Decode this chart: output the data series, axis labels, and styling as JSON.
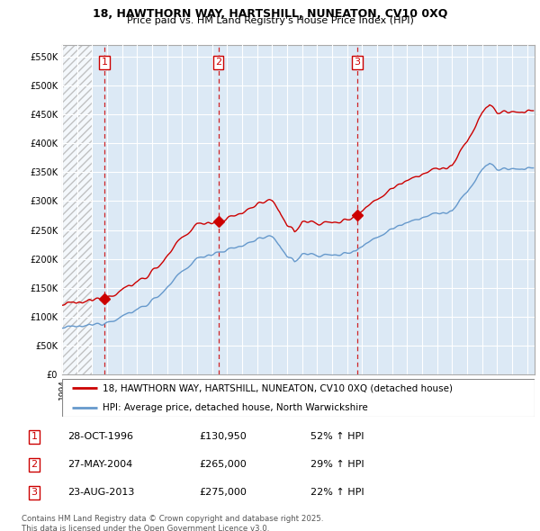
{
  "title1": "18, HAWTHORN WAY, HARTSHILL, NUNEATON, CV10 0XQ",
  "title2": "Price paid vs. HM Land Registry's House Price Index (HPI)",
  "legend_label1": "18, HAWTHORN WAY, HARTSHILL, NUNEATON, CV10 0XQ (detached house)",
  "legend_label2": "HPI: Average price, detached house, North Warwickshire",
  "sale_label1": "28-OCT-1996",
  "sale_price1": 130950,
  "sale_pct1": "52% ↑ HPI",
  "sale_label2": "27-MAY-2004",
  "sale_price2": 265000,
  "sale_pct2": "29% ↑ HPI",
  "sale_label3": "23-AUG-2013",
  "sale_price3": 275000,
  "sale_pct3": "22% ↑ HPI",
  "footer": "Contains HM Land Registry data © Crown copyright and database right 2025.\nThis data is licensed under the Open Government Licence v3.0.",
  "color_sale": "#cc0000",
  "color_hpi": "#6699cc",
  "color_vline": "#cc0000",
  "chart_bg": "#dce9f5",
  "ylim_max": 570000,
  "ylim_min": 0,
  "sale1_x": 1996.833,
  "sale2_x": 2004.417,
  "sale3_x": 2013.667
}
